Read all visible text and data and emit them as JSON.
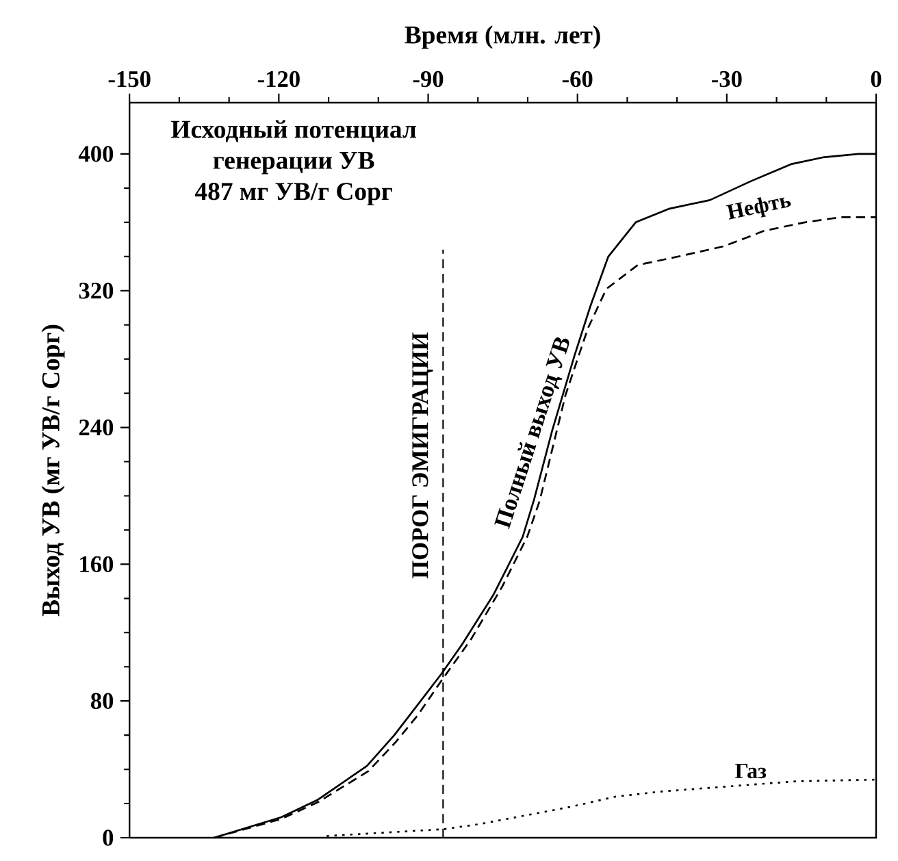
{
  "chart_data": {
    "type": "line",
    "xlabel": "Время (млн. лет)",
    "ylabel": "Выход УВ (мг УВ/г Сорг)",
    "xlim": [
      -150,
      0
    ],
    "xticks": [
      -150,
      -120,
      -90,
      -60,
      -30,
      0
    ],
    "ylim": [
      0,
      430
    ],
    "yticks": [
      0,
      80,
      160,
      240,
      320,
      400
    ],
    "grid": false,
    "marker": "none",
    "annotations": [
      "Исходный потенциал",
      "генерации УВ",
      "487 мг УВ/г Сорг"
    ],
    "ref_lines": [
      {
        "axis": "x",
        "value": -87,
        "label": "ПОРОГ ЭМИГРАЦИИ",
        "line_style": "dashed",
        "color": "#000000"
      }
    ],
    "series": [
      {
        "name": "Полный выход УВ",
        "color": "#000000",
        "line_style": "solid",
        "x": [
          -133,
          -119.5,
          -112.3,
          -102.3,
          -96.8,
          -92.3,
          -87.3,
          -83.2,
          -76.9,
          -71,
          -68.7,
          -65.1,
          -60.6,
          -57.4,
          -53.8,
          -48.3,
          -41.5,
          -33.4,
          -25.2,
          -17.1,
          -10.7,
          -3.5,
          0
        ],
        "values": [
          0,
          12,
          22,
          42,
          60,
          77,
          96,
          113,
          142,
          176,
          198,
          238,
          282,
          311,
          340,
          360,
          368,
          373,
          384,
          394,
          398,
          400,
          400
        ]
      },
      {
        "name": "Нефть",
        "color": "#000000",
        "line_style": "dashed",
        "x": [
          -133,
          -119.5,
          -112,
          -102,
          -96.5,
          -92,
          -87.3,
          -81.4,
          -75.1,
          -70.1,
          -67.6,
          -62.4,
          -57.9,
          -54.2,
          -47.9,
          -39.7,
          -30.6,
          -22.5,
          -14.3,
          -7,
          0
        ],
        "values": [
          0,
          11,
          21,
          39,
          56,
          72,
          92,
          116,
          147,
          176,
          197,
          259,
          298,
          321,
          335,
          340,
          346,
          355,
          360,
          363,
          363
        ]
      },
      {
        "name": "Газ",
        "color": "#000000",
        "line_style": "dotted",
        "x": [
          -110.4,
          -86.9,
          -79.6,
          -70.5,
          -61.5,
          -52.4,
          -43.3,
          -34.3,
          -25.2,
          -16.1,
          0
        ],
        "values": [
          1,
          5,
          8,
          13,
          18,
          24,
          27,
          29,
          31,
          33,
          34
        ]
      }
    ]
  }
}
